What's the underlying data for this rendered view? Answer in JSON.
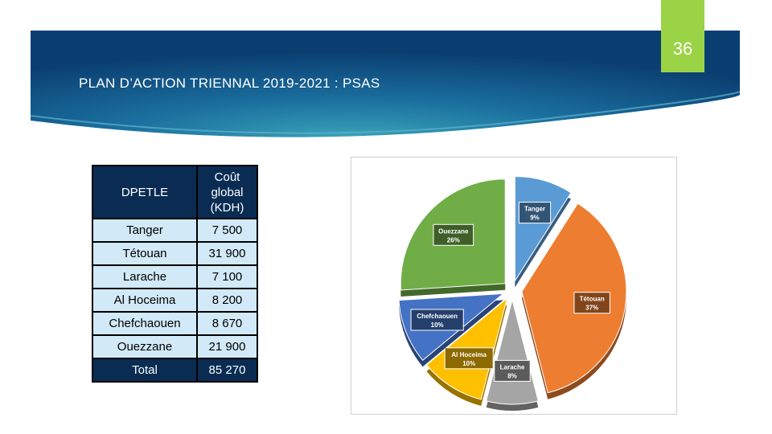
{
  "slide": {
    "number": "36",
    "title": "PLAN D’ACTION TRIENNAL 2019-2021 : PSAS"
  },
  "table": {
    "headers": [
      "DPETLE",
      "Coût global (KDH)"
    ],
    "rows": [
      {
        "name": "Tanger",
        "cost": "7 500"
      },
      {
        "name": "Tétouan",
        "cost": "31 900"
      },
      {
        "name": "Larache",
        "cost": "7 100"
      },
      {
        "name": "Al Hoceima",
        "cost": "8 200"
      },
      {
        "name": "Chefchaouen",
        "cost": "8 670"
      },
      {
        "name": "Ouezzane",
        "cost": "21 900"
      }
    ],
    "total": {
      "name": "Total",
      "cost": "85 270"
    }
  },
  "chart_data": {
    "type": "pie",
    "slices": [
      {
        "label": "Tanger",
        "percent_label": "9%",
        "value": 9,
        "color": "#5b9bd5"
      },
      {
        "label": "Tétouan",
        "percent_label": "37%",
        "value": 37,
        "color": "#ed7d31"
      },
      {
        "label": "Larache",
        "percent_label": "8%",
        "value": 8,
        "color": "#a5a5a5"
      },
      {
        "label": "Al Hoceima",
        "percent_label": "10%",
        "value": 10,
        "color": "#ffc000"
      },
      {
        "label": "Chefchaouen",
        "percent_label": "10%",
        "value": 10,
        "color": "#4472c4"
      },
      {
        "label": "Ouezzane",
        "percent_label": "26%",
        "value": 26,
        "color": "#70ad47"
      }
    ],
    "exploded": true,
    "legend": "none"
  },
  "colors": {
    "banner_dark": "#0b3f72",
    "banner_light": "#2b8fb0",
    "accent_green": "#9bd346",
    "table_dark": "#0a2c52",
    "table_light": "#d2e9f7"
  }
}
